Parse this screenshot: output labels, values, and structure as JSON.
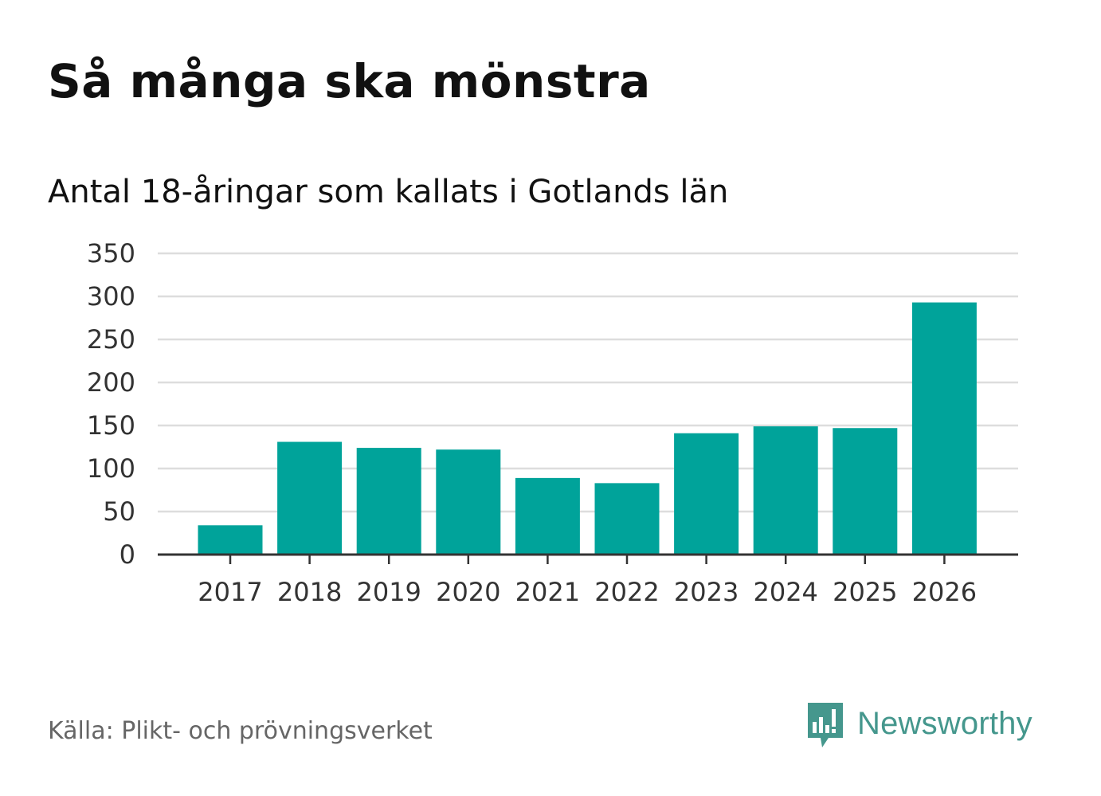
{
  "chart_data": {
    "type": "bar",
    "title": "Så många ska mönstra",
    "subtitle": "Antal 18-åringar som kallats i Gotlands län",
    "categories": [
      "2017",
      "2018",
      "2019",
      "2020",
      "2021",
      "2022",
      "2023",
      "2024",
      "2025",
      "2026"
    ],
    "values": [
      34,
      131,
      124,
      122,
      89,
      83,
      141,
      149,
      147,
      293
    ],
    "ylim": [
      0,
      350
    ],
    "yticks": [
      0,
      50,
      100,
      150,
      200,
      250,
      300,
      350
    ],
    "xlabel": "",
    "ylabel": "",
    "grid": true,
    "bar_color": "#00a39a"
  },
  "footer": {
    "source": "Källa: Plikt- och prövningsverket",
    "brand": "Newsworthy",
    "brand_color": "#45978d"
  }
}
